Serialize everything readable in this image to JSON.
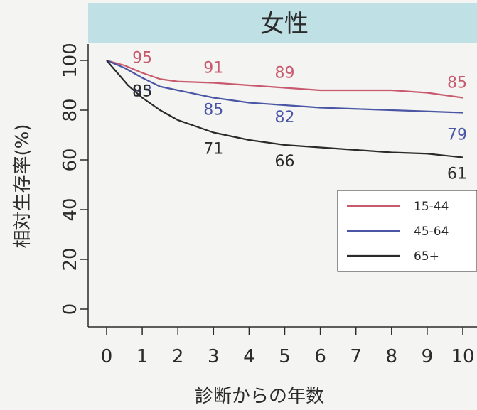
{
  "panel_title": "女性",
  "colors": {
    "header_bg": "#bfe0e4",
    "series_15_44": "#c85a6e",
    "series_45_64": "#4a56a4",
    "series_65_plus": "#2a2a2a"
  },
  "chart_data": {
    "type": "line",
    "title": "女性",
    "xlabel": "診断からの年数",
    "ylabel": "相対生存率(%)",
    "xlim": [
      0,
      10
    ],
    "ylim": [
      0,
      100
    ],
    "x_ticks": [
      0,
      1,
      2,
      3,
      4,
      5,
      6,
      7,
      8,
      9,
      10
    ],
    "y_ticks": [
      0,
      20,
      40,
      60,
      80,
      100
    ],
    "grid": false,
    "legend_position": "right",
    "series": [
      {
        "name": "15-44",
        "color": "#c85a6e",
        "x": [
          0,
          0.5,
          1,
          1.5,
          2,
          3,
          4,
          5,
          6,
          7,
          8,
          9,
          10
        ],
        "y": [
          100,
          98,
          95,
          92.5,
          91.5,
          91,
          90,
          89,
          88,
          88,
          88,
          87,
          85
        ],
        "labels": [
          {
            "x": 1,
            "text": "95"
          },
          {
            "x": 3,
            "text": "91"
          },
          {
            "x": 5,
            "text": "89"
          },
          {
            "x": 10,
            "text": "85"
          }
        ]
      },
      {
        "name": "45-64",
        "color": "#4a56a4",
        "x": [
          0,
          0.5,
          1,
          1.5,
          2,
          3,
          4,
          5,
          6,
          7,
          8,
          9,
          10
        ],
        "y": [
          100,
          97,
          93,
          89.5,
          88,
          85,
          83,
          82,
          81,
          80.5,
          80,
          79.5,
          79
        ],
        "labels": [
          {
            "x": 1,
            "text": "93"
          },
          {
            "x": 3,
            "text": "85"
          },
          {
            "x": 5,
            "text": "82"
          },
          {
            "x": 10,
            "text": "79"
          }
        ]
      },
      {
        "name": "65+",
        "color": "#2a2a2a",
        "x": [
          0,
          0.3,
          0.6,
          1,
          1.5,
          2,
          3,
          4,
          5,
          6,
          7,
          8,
          9,
          10
        ],
        "y": [
          100,
          95,
          90,
          85,
          80,
          76,
          71,
          68,
          66,
          65,
          64,
          63,
          62.5,
          61
        ],
        "labels": [
          {
            "x": 1,
            "text": "85"
          },
          {
            "x": 3,
            "text": "71"
          },
          {
            "x": 5,
            "text": "66"
          },
          {
            "x": 10,
            "text": "61"
          }
        ]
      }
    ]
  }
}
